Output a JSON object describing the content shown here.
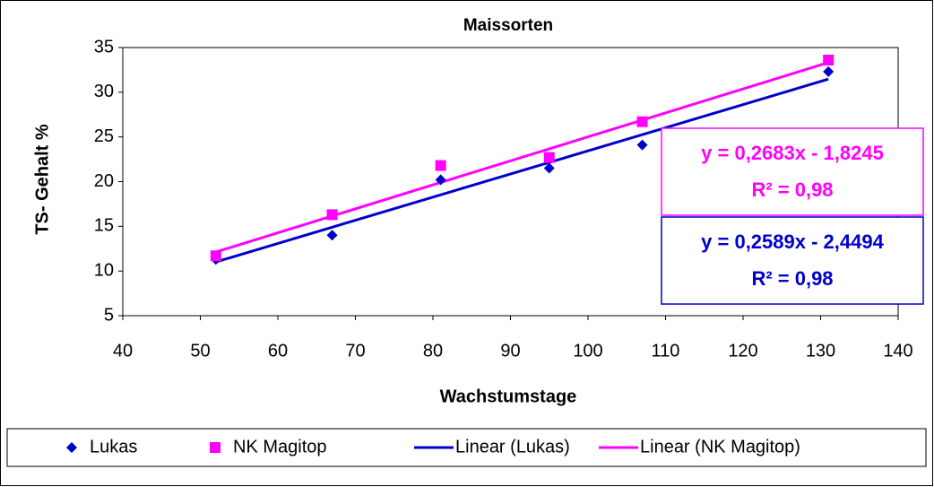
{
  "chart_data": {
    "type": "scatter",
    "title": "Maissorten",
    "x_label": "Wachstumstage",
    "y_label": "TS- Gehalt %",
    "xlim": [
      40,
      140
    ],
    "xticks": [
      40,
      50,
      60,
      70,
      80,
      90,
      100,
      110,
      120,
      130,
      140
    ],
    "ylim": [
      5,
      35
    ],
    "yticks": [
      5,
      10,
      15,
      20,
      25,
      30,
      35
    ],
    "series": [
      {
        "name": "Lukas",
        "color": "#0000cc",
        "marker": "diamond",
        "x": [
          52,
          67,
          81,
          95,
          107,
          131
        ],
        "values": [
          11.3,
          14.0,
          20.2,
          21.5,
          24.1,
          32.3
        ]
      },
      {
        "name": "NK Magitop",
        "color": "#ff00ff",
        "marker": "square",
        "x": [
          52,
          67,
          81,
          95,
          107,
          131
        ],
        "values": [
          11.7,
          16.3,
          21.8,
          22.7,
          26.7,
          33.6
        ]
      }
    ],
    "trendlines": [
      {
        "name": "Linear (Lukas)",
        "color": "#0000cc",
        "slope": 0.2589,
        "intercept": -2.4494,
        "equation": "y = 0,2589x - 2,4494",
        "r2": "R² = 0,98"
      },
      {
        "name": "Linear (NK Magitop)",
        "color": "#ff00ff",
        "slope": 0.2683,
        "intercept": -1.8245,
        "equation": "y = 0,2683x - 1,8245",
        "r2": "R² = 0,98"
      }
    ],
    "legend": "bottom"
  }
}
